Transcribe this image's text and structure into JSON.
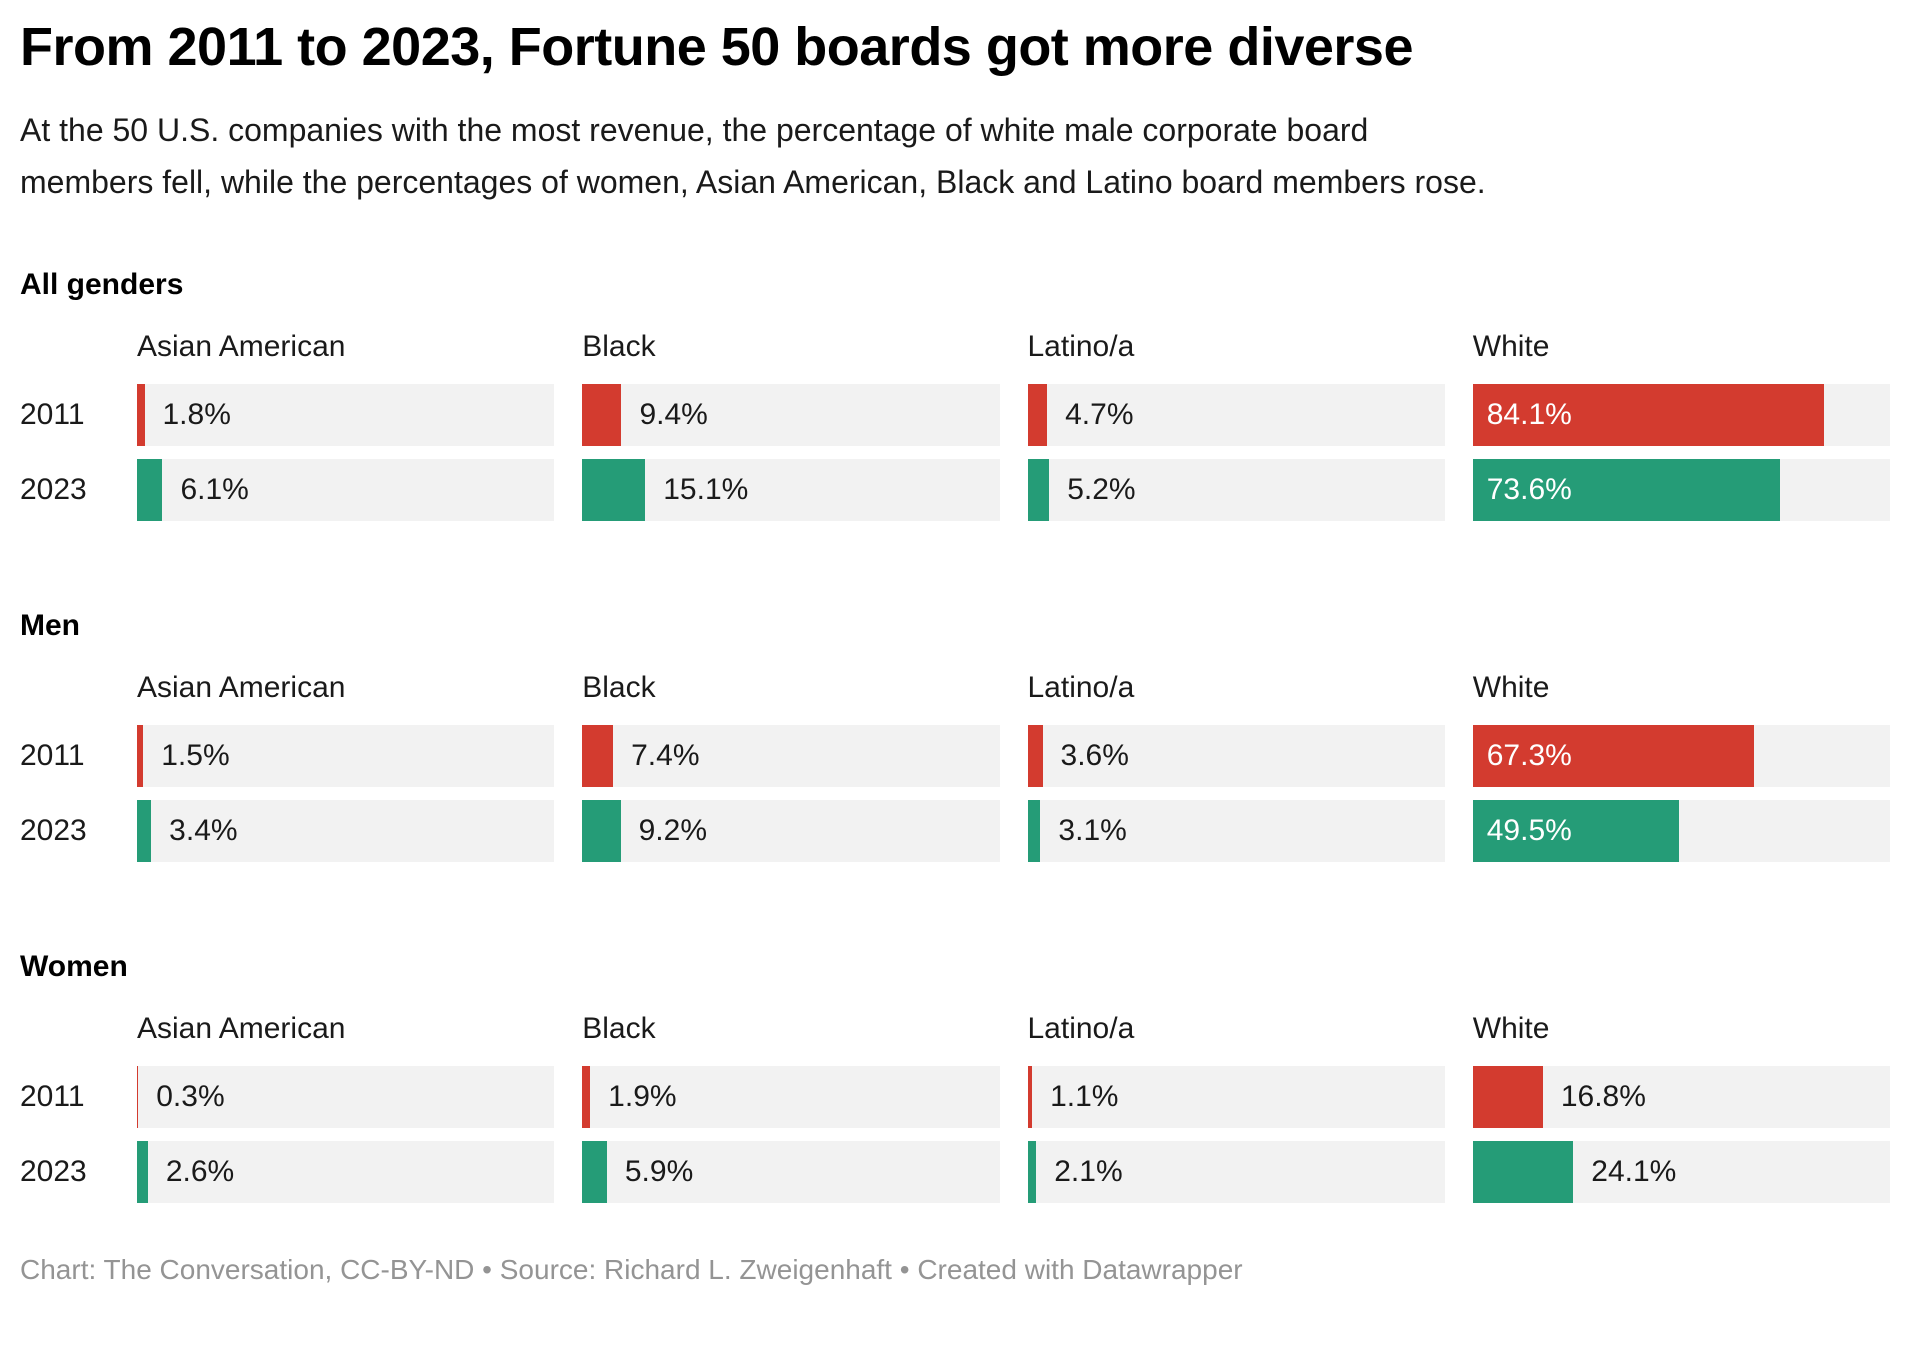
{
  "header": {
    "title": "From 2011 to 2023, Fortune 50 boards got more diverse",
    "subtitle": "At the 50 U.S. companies with the most revenue, the percentage of white male corporate board members fell, while the percentages of women, Asian American, Black and Latino board members rose."
  },
  "colors": {
    "bar_2011": "#d33b2f",
    "bar_2023": "#259c77",
    "track": "#f2f2f2",
    "value_inside": "#ffffff",
    "value_outside": "#1a1a1a"
  },
  "chart_data": {
    "type": "bar",
    "orientation": "horizontal",
    "unit": "%",
    "xlim": [
      0,
      100
    ],
    "grid": false,
    "categories": [
      "Asian American",
      "Black",
      "Latino/a",
      "White"
    ],
    "label_inside_threshold_pct": 40,
    "groups": [
      {
        "label": "All genders",
        "series": [
          {
            "name": "2011",
            "color_key": "bar_2011",
            "values": [
              1.8,
              9.4,
              4.7,
              84.1
            ]
          },
          {
            "name": "2023",
            "color_key": "bar_2023",
            "values": [
              6.1,
              15.1,
              5.2,
              73.6
            ]
          }
        ]
      },
      {
        "label": "Men",
        "series": [
          {
            "name": "2011",
            "color_key": "bar_2011",
            "values": [
              1.5,
              7.4,
              3.6,
              67.3
            ]
          },
          {
            "name": "2023",
            "color_key": "bar_2023",
            "values": [
              3.4,
              9.2,
              3.1,
              49.5
            ]
          }
        ]
      },
      {
        "label": "Women",
        "series": [
          {
            "name": "2011",
            "color_key": "bar_2011",
            "values": [
              0.3,
              1.9,
              1.1,
              16.8
            ]
          },
          {
            "name": "2023",
            "color_key": "bar_2023",
            "values": [
              2.6,
              5.9,
              2.1,
              24.1
            ]
          }
        ]
      }
    ]
  },
  "footer": {
    "text": "Chart: The Conversation, CC-BY-ND • Source: Richard L. Zweigenhaft • Created with Datawrapper"
  }
}
